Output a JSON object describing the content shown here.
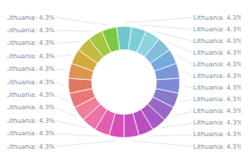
{
  "chart_data": {
    "type": "pie",
    "categories": [
      "Lithuania",
      "Lithuania",
      "Lithuania",
      "Lithuania",
      "Lithuania",
      "Lithuania",
      "Lithuania",
      "Lithuania",
      "Lithuania",
      "Lithuania",
      "Lithuania",
      "Lithuania",
      "Lithuania",
      "Lithuania",
      "Lithuania",
      "Lithuania",
      "Lithuania",
      "Lithuania",
      "Lithuania",
      "Lithuania",
      "Lithuania",
      "Lithuania",
      "Lithuania"
    ],
    "values": [
      4.3,
      4.3,
      4.3,
      4.3,
      4.3,
      4.3,
      4.3,
      4.3,
      4.3,
      4.3,
      4.3,
      4.3,
      4.3,
      4.3,
      4.3,
      4.3,
      4.3,
      4.3,
      4.3,
      4.3,
      4.3,
      4.3,
      4.3
    ],
    "value_labels": [
      "Lithuania: 4.3%",
      "Lithuania: 4.3%",
      "Lithuania: 4.3%",
      "Lithuania: 4.3%",
      "Lithuania: 4.3%",
      "Lithuania: 4.3%",
      "Lithuania: 4.3%",
      "Lithuania: 4.3%",
      "Lithuania: 4.3%",
      "Lithuania: 4.3%",
      "Lithuania: 4.3%",
      "Lithuania: 4.3%",
      "Lithuania: 4.3%",
      "Lithuania: 4.3%",
      "Lithuania: 4.3%",
      "Lithuania: 4.3%",
      "Lithuania: 4.3%",
      "Lithuania: 4.3%",
      "Lithuania: 4.3%",
      "Lithuania: 4.3%",
      "Lithuania: 4.3%",
      "Lithuania: 4.3%",
      "Lithuania: 4.3%"
    ],
    "data_labels": true,
    "colors": [
      "#6EC8CE",
      "#7DCDD6",
      "#8DD4DC",
      "#85BEDD",
      "#74AADE",
      "#7898D8",
      "#7E88D4",
      "#8878CC",
      "#9868C8",
      "#A858C4",
      "#B84EC0",
      "#C84EC0",
      "#D84EB8",
      "#E060AE",
      "#EC72A8",
      "#F07E98",
      "#E87878",
      "#DE7860",
      "#DC9450",
      "#D4AA40",
      "#C4BC40",
      "#A4C840",
      "#7EC840"
    ]
  }
}
